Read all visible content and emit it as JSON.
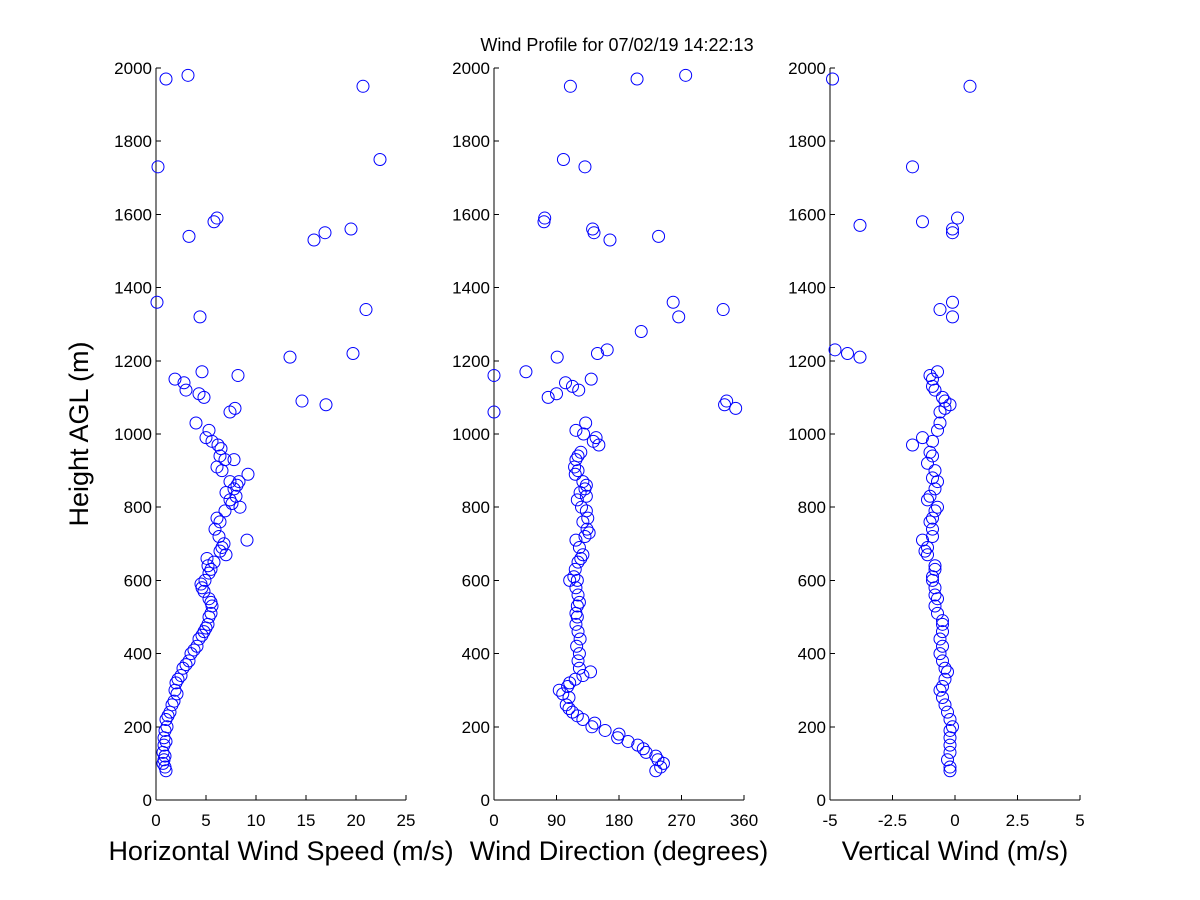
{
  "figure": {
    "title": "Wind Profile for  07/02/19 14:22:13",
    "marker_color": "#0000ff",
    "background": "#ffffff"
  },
  "chart_data": [
    {
      "type": "scatter",
      "title": "",
      "xlabel": "Horizontal Wind Speed (m/s)",
      "ylabel": "Height AGL (m)",
      "xlim": [
        0,
        25
      ],
      "ylim": [
        0,
        2000
      ],
      "xticks": [
        0,
        5,
        10,
        15,
        20,
        25
      ],
      "xtick_labels": [
        "0",
        "5",
        "10",
        "15",
        "20",
        "25"
      ],
      "yticks": [
        0,
        200,
        400,
        600,
        800,
        1000,
        1200,
        1400,
        1600,
        1800,
        2000
      ],
      "ytick_labels": [
        "0",
        "200",
        "400",
        "600",
        "800",
        "1000",
        "1200",
        "1400",
        "1600",
        "1800",
        "2000"
      ],
      "grid": false,
      "marker": "open-circle",
      "points": [
        [
          1.0,
          1970
        ],
        [
          3.2,
          1980
        ],
        [
          20.7,
          1950
        ],
        [
          0.2,
          1730
        ],
        [
          22.4,
          1750
        ],
        [
          6.1,
          1590
        ],
        [
          5.8,
          1580
        ],
        [
          3.3,
          1540
        ],
        [
          15.8,
          1530
        ],
        [
          16.9,
          1550
        ],
        [
          19.5,
          1560
        ],
        [
          0.1,
          1360
        ],
        [
          4.4,
          1320
        ],
        [
          21.0,
          1340
        ],
        [
          13.4,
          1210
        ],
        [
          19.7,
          1220
        ],
        [
          4.6,
          1170
        ],
        [
          8.2,
          1160
        ],
        [
          1.9,
          1150
        ],
        [
          2.8,
          1140
        ],
        [
          3.0,
          1120
        ],
        [
          4.3,
          1110
        ],
        [
          4.8,
          1100
        ],
        [
          14.6,
          1090
        ],
        [
          17.0,
          1080
        ],
        [
          7.9,
          1070
        ],
        [
          7.4,
          1060
        ],
        [
          4.0,
          1030
        ],
        [
          5.3,
          1010
        ],
        [
          5.0,
          990
        ],
        [
          5.6,
          980
        ],
        [
          6.2,
          970
        ],
        [
          6.5,
          960
        ],
        [
          6.4,
          940
        ],
        [
          6.9,
          930
        ],
        [
          7.8,
          930
        ],
        [
          6.1,
          910
        ],
        [
          6.6,
          900
        ],
        [
          9.2,
          890
        ],
        [
          7.4,
          870
        ],
        [
          8.1,
          860
        ],
        [
          8.3,
          870
        ],
        [
          7.8,
          850
        ],
        [
          7.0,
          840
        ],
        [
          7.4,
          820
        ],
        [
          8.0,
          830
        ],
        [
          7.6,
          810
        ],
        [
          8.4,
          800
        ],
        [
          6.9,
          790
        ],
        [
          6.1,
          770
        ],
        [
          6.4,
          760
        ],
        [
          5.9,
          740
        ],
        [
          6.3,
          720
        ],
        [
          9.1,
          710
        ],
        [
          6.8,
          700
        ],
        [
          6.6,
          690
        ],
        [
          7.0,
          670
        ],
        [
          6.4,
          680
        ],
        [
          5.8,
          650
        ],
        [
          5.5,
          630
        ],
        [
          5.2,
          640
        ],
        [
          5.1,
          660
        ],
        [
          5.3,
          620
        ],
        [
          4.9,
          600
        ],
        [
          4.5,
          590
        ],
        [
          4.6,
          580
        ],
        [
          4.8,
          570
        ],
        [
          5.3,
          550
        ],
        [
          5.5,
          540
        ],
        [
          5.6,
          530
        ],
        [
          5.5,
          510
        ],
        [
          5.3,
          500
        ],
        [
          5.2,
          480
        ],
        [
          5.0,
          470
        ],
        [
          4.8,
          460
        ],
        [
          4.6,
          450
        ],
        [
          4.3,
          440
        ],
        [
          4.1,
          420
        ],
        [
          3.8,
          410
        ],
        [
          3.5,
          400
        ],
        [
          3.3,
          380
        ],
        [
          3.0,
          370
        ],
        [
          2.7,
          360
        ],
        [
          2.5,
          340
        ],
        [
          2.2,
          330
        ],
        [
          2.0,
          320
        ],
        [
          1.9,
          300
        ],
        [
          2.1,
          290
        ],
        [
          1.8,
          270
        ],
        [
          1.6,
          260
        ],
        [
          1.4,
          240
        ],
        [
          1.2,
          230
        ],
        [
          1.0,
          220
        ],
        [
          1.1,
          200
        ],
        [
          0.9,
          190
        ],
        [
          0.8,
          170
        ],
        [
          1.0,
          160
        ],
        [
          0.8,
          150
        ],
        [
          0.7,
          130
        ],
        [
          0.9,
          120
        ],
        [
          0.8,
          110
        ],
        [
          0.7,
          100
        ],
        [
          0.9,
          90
        ],
        [
          1.0,
          80
        ]
      ]
    },
    {
      "type": "scatter",
      "title": "",
      "xlabel": "Wind Direction (degrees)",
      "ylabel": "",
      "xlim": [
        0,
        360
      ],
      "ylim": [
        0,
        2000
      ],
      "xticks": [
        0,
        90,
        180,
        270,
        360
      ],
      "xtick_labels": [
        "0",
        "90",
        "180",
        "270",
        "360"
      ],
      "yticks": [
        0,
        200,
        400,
        600,
        800,
        1000,
        1200,
        1400,
        1600,
        1800,
        2000
      ],
      "ytick_labels": [
        "0",
        "200",
        "400",
        "600",
        "800",
        "1000",
        "1200",
        "1400",
        "1600",
        "1800",
        "2000"
      ],
      "grid": false,
      "marker": "open-circle",
      "points": [
        [
          110,
          1950
        ],
        [
          206,
          1970
        ],
        [
          276,
          1980
        ],
        [
          100,
          1750
        ],
        [
          131,
          1730
        ],
        [
          73,
          1590
        ],
        [
          72,
          1580
        ],
        [
          142,
          1560
        ],
        [
          144,
          1550
        ],
        [
          167,
          1530
        ],
        [
          237,
          1540
        ],
        [
          258,
          1360
        ],
        [
          266,
          1320
        ],
        [
          330,
          1340
        ],
        [
          212,
          1280
        ],
        [
          91,
          1210
        ],
        [
          149,
          1220
        ],
        [
          163,
          1230
        ],
        [
          0,
          1160
        ],
        [
          46,
          1170
        ],
        [
          103,
          1140
        ],
        [
          113,
          1130
        ],
        [
          122,
          1120
        ],
        [
          140,
          1150
        ],
        [
          90,
          1110
        ],
        [
          78,
          1100
        ],
        [
          332,
          1080
        ],
        [
          335,
          1090
        ],
        [
          348,
          1070
        ],
        [
          0,
          1060
        ],
        [
          132,
          1030
        ],
        [
          118,
          1010
        ],
        [
          129,
          1000
        ],
        [
          147,
          990
        ],
        [
          143,
          980
        ],
        [
          151,
          970
        ],
        [
          125,
          950
        ],
        [
          121,
          940
        ],
        [
          118,
          930
        ],
        [
          116,
          910
        ],
        [
          121,
          900
        ],
        [
          117,
          890
        ],
        [
          128,
          870
        ],
        [
          133,
          860
        ],
        [
          131,
          850
        ],
        [
          124,
          840
        ],
        [
          133,
          830
        ],
        [
          120,
          820
        ],
        [
          126,
          800
        ],
        [
          133,
          790
        ],
        [
          135,
          770
        ],
        [
          128,
          760
        ],
        [
          134,
          740
        ],
        [
          137,
          730
        ],
        [
          131,
          720
        ],
        [
          118,
          710
        ],
        [
          123,
          690
        ],
        [
          128,
          670
        ],
        [
          125,
          660
        ],
        [
          121,
          650
        ],
        [
          117,
          630
        ],
        [
          115,
          610
        ],
        [
          120,
          600
        ],
        [
          109,
          600
        ],
        [
          118,
          580
        ],
        [
          121,
          560
        ],
        [
          123,
          540
        ],
        [
          120,
          530
        ],
        [
          118,
          510
        ],
        [
          120,
          500
        ],
        [
          118,
          480
        ],
        [
          121,
          460
        ],
        [
          124,
          440
        ],
        [
          119,
          420
        ],
        [
          123,
          400
        ],
        [
          121,
          380
        ],
        [
          123,
          360
        ],
        [
          139,
          350
        ],
        [
          128,
          340
        ],
        [
          109,
          320
        ],
        [
          117,
          330
        ],
        [
          106,
          310
        ],
        [
          94,
          300
        ],
        [
          99,
          290
        ],
        [
          108,
          280
        ],
        [
          104,
          260
        ],
        [
          108,
          250
        ],
        [
          113,
          240
        ],
        [
          120,
          230
        ],
        [
          128,
          220
        ],
        [
          145,
          210
        ],
        [
          141,
          200
        ],
        [
          160,
          190
        ],
        [
          178,
          170
        ],
        [
          180,
          180
        ],
        [
          193,
          160
        ],
        [
          207,
          150
        ],
        [
          215,
          140
        ],
        [
          219,
          130
        ],
        [
          233,
          120
        ],
        [
          236,
          110
        ],
        [
          244,
          100
        ],
        [
          240,
          90
        ],
        [
          233,
          80
        ]
      ]
    },
    {
      "type": "scatter",
      "title": "",
      "xlabel": "Vertical Wind (m/s)",
      "ylabel": "",
      "xlim": [
        -5,
        5
      ],
      "ylim": [
        0,
        2000
      ],
      "xticks": [
        -5,
        -2.5,
        0,
        2.5,
        5
      ],
      "xtick_labels": [
        "-5",
        "-2.5",
        "0",
        "2.5",
        "5"
      ],
      "yticks": [
        0,
        200,
        400,
        600,
        800,
        1000,
        1200,
        1400,
        1600,
        1800,
        2000
      ],
      "ytick_labels": [
        "0",
        "200",
        "400",
        "600",
        "800",
        "1000",
        "1200",
        "1400",
        "1600",
        "1800",
        "2000"
      ],
      "grid": false,
      "marker": "open-circle",
      "points": [
        [
          -4.9,
          1970
        ],
        [
          0.6,
          1950
        ],
        [
          -1.7,
          1730
        ],
        [
          -3.8,
          1570
        ],
        [
          -1.3,
          1580
        ],
        [
          0.1,
          1590
        ],
        [
          -0.1,
          1560
        ],
        [
          -0.1,
          1550
        ],
        [
          -0.1,
          1360
        ],
        [
          -0.6,
          1340
        ],
        [
          -0.1,
          1320
        ],
        [
          -4.8,
          1230
        ],
        [
          -4.3,
          1220
        ],
        [
          -3.8,
          1210
        ],
        [
          -0.7,
          1170
        ],
        [
          -1.0,
          1160
        ],
        [
          -0.9,
          1150
        ],
        [
          -0.9,
          1130
        ],
        [
          -0.8,
          1120
        ],
        [
          -0.5,
          1100
        ],
        [
          -0.4,
          1090
        ],
        [
          -0.2,
          1080
        ],
        [
          -0.4,
          1070
        ],
        [
          -0.6,
          1060
        ],
        [
          -0.6,
          1030
        ],
        [
          -0.7,
          1010
        ],
        [
          -1.3,
          990
        ],
        [
          -0.9,
          980
        ],
        [
          -1.7,
          970
        ],
        [
          -1.0,
          950
        ],
        [
          -0.9,
          940
        ],
        [
          -1.1,
          920
        ],
        [
          -0.8,
          900
        ],
        [
          -0.9,
          880
        ],
        [
          -0.7,
          870
        ],
        [
          -0.8,
          850
        ],
        [
          -1.0,
          830
        ],
        [
          -1.1,
          820
        ],
        [
          -0.7,
          800
        ],
        [
          -0.8,
          790
        ],
        [
          -0.9,
          770
        ],
        [
          -1.0,
          760
        ],
        [
          -0.9,
          740
        ],
        [
          -0.9,
          720
        ],
        [
          -1.3,
          710
        ],
        [
          -1.1,
          690
        ],
        [
          -1.2,
          680
        ],
        [
          -1.1,
          670
        ],
        [
          -0.8,
          640
        ],
        [
          -0.8,
          630
        ],
        [
          -0.9,
          610
        ],
        [
          -0.9,
          600
        ],
        [
          -0.8,
          580
        ],
        [
          -0.8,
          560
        ],
        [
          -0.7,
          550
        ],
        [
          -0.8,
          530
        ],
        [
          -0.7,
          510
        ],
        [
          -0.5,
          490
        ],
        [
          -0.5,
          480
        ],
        [
          -0.5,
          460
        ],
        [
          -0.6,
          440
        ],
        [
          -0.5,
          420
        ],
        [
          -0.6,
          400
        ],
        [
          -0.5,
          380
        ],
        [
          -0.4,
          360
        ],
        [
          -0.3,
          350
        ],
        [
          -0.4,
          330
        ],
        [
          -0.5,
          310
        ],
        [
          -0.6,
          300
        ],
        [
          -0.5,
          280
        ],
        [
          -0.4,
          260
        ],
        [
          -0.3,
          240
        ],
        [
          -0.2,
          220
        ],
        [
          -0.1,
          200
        ],
        [
          -0.2,
          190
        ],
        [
          -0.2,
          170
        ],
        [
          -0.2,
          150
        ],
        [
          -0.2,
          130
        ],
        [
          -0.3,
          110
        ],
        [
          -0.2,
          90
        ],
        [
          -0.2,
          80
        ]
      ]
    }
  ]
}
